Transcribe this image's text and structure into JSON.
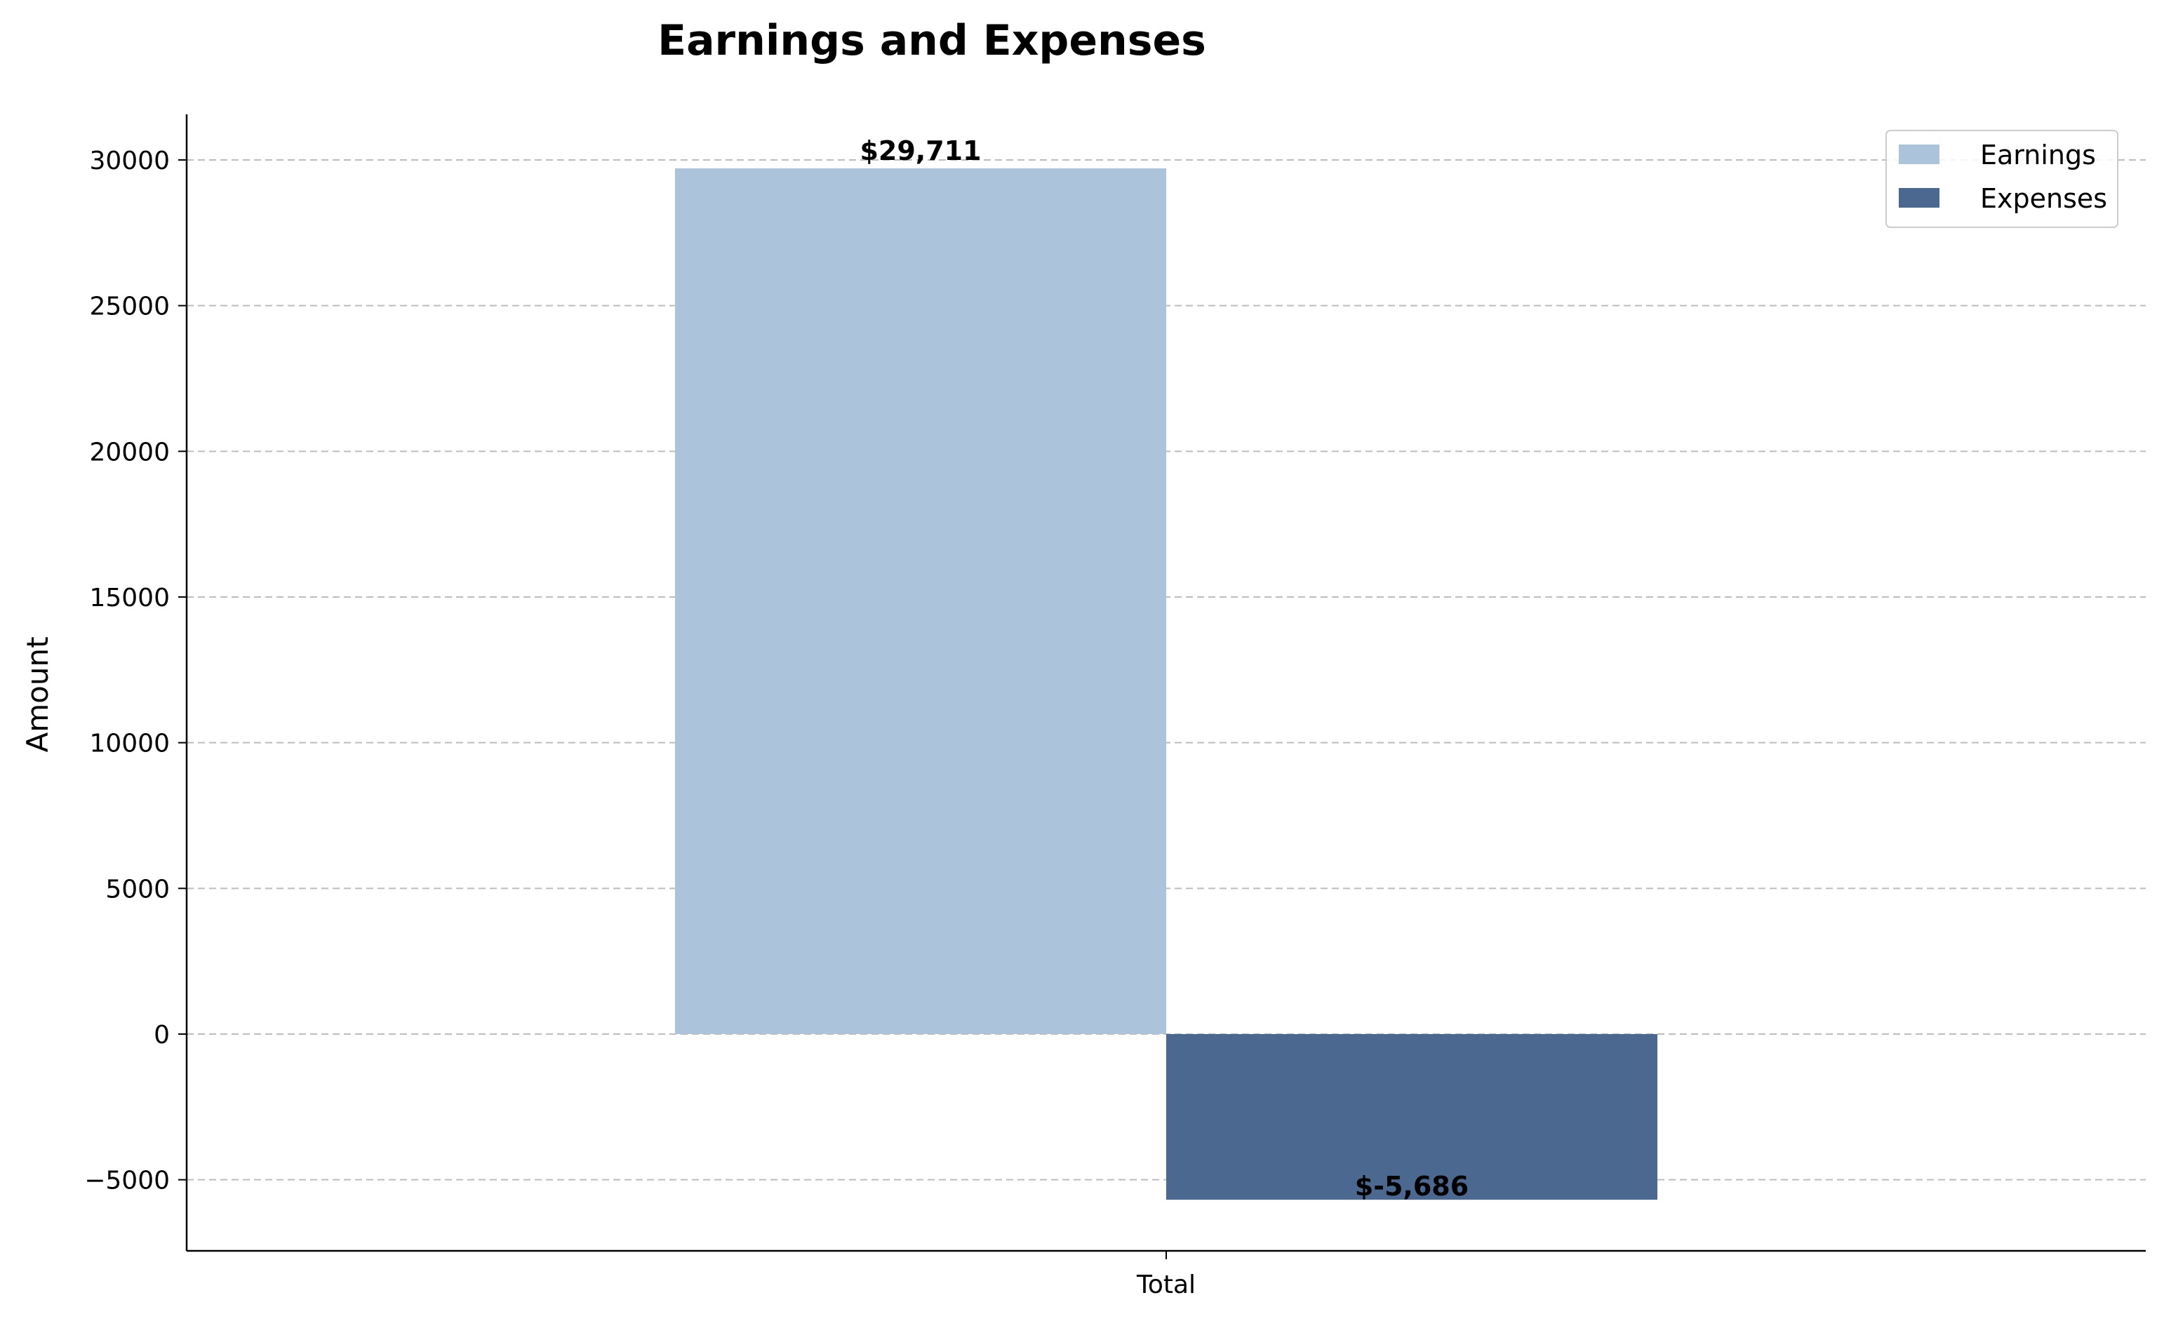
{
  "chart_data": {
    "type": "bar",
    "title": "Earnings and Expenses",
    "xlabel": "",
    "ylabel": "Amount",
    "categories": [
      "Total"
    ],
    "series": [
      {
        "name": "Earnings",
        "values": [
          29711
        ],
        "label": "$29,711",
        "color": "#abc4db"
      },
      {
        "name": "Expenses",
        "values": [
          -5686
        ],
        "label": "$-5,686",
        "color": "#4b6890"
      }
    ],
    "ylim": [
      -7200,
      31500
    ],
    "yticks": [
      -5000,
      0,
      5000,
      10000,
      15000,
      20000,
      25000,
      30000
    ],
    "ytick_labels": [
      "−5000",
      "0",
      "5000",
      "10000",
      "15000",
      "20000",
      "25000",
      "30000"
    ],
    "grid": true,
    "legend_position": "top-right"
  }
}
